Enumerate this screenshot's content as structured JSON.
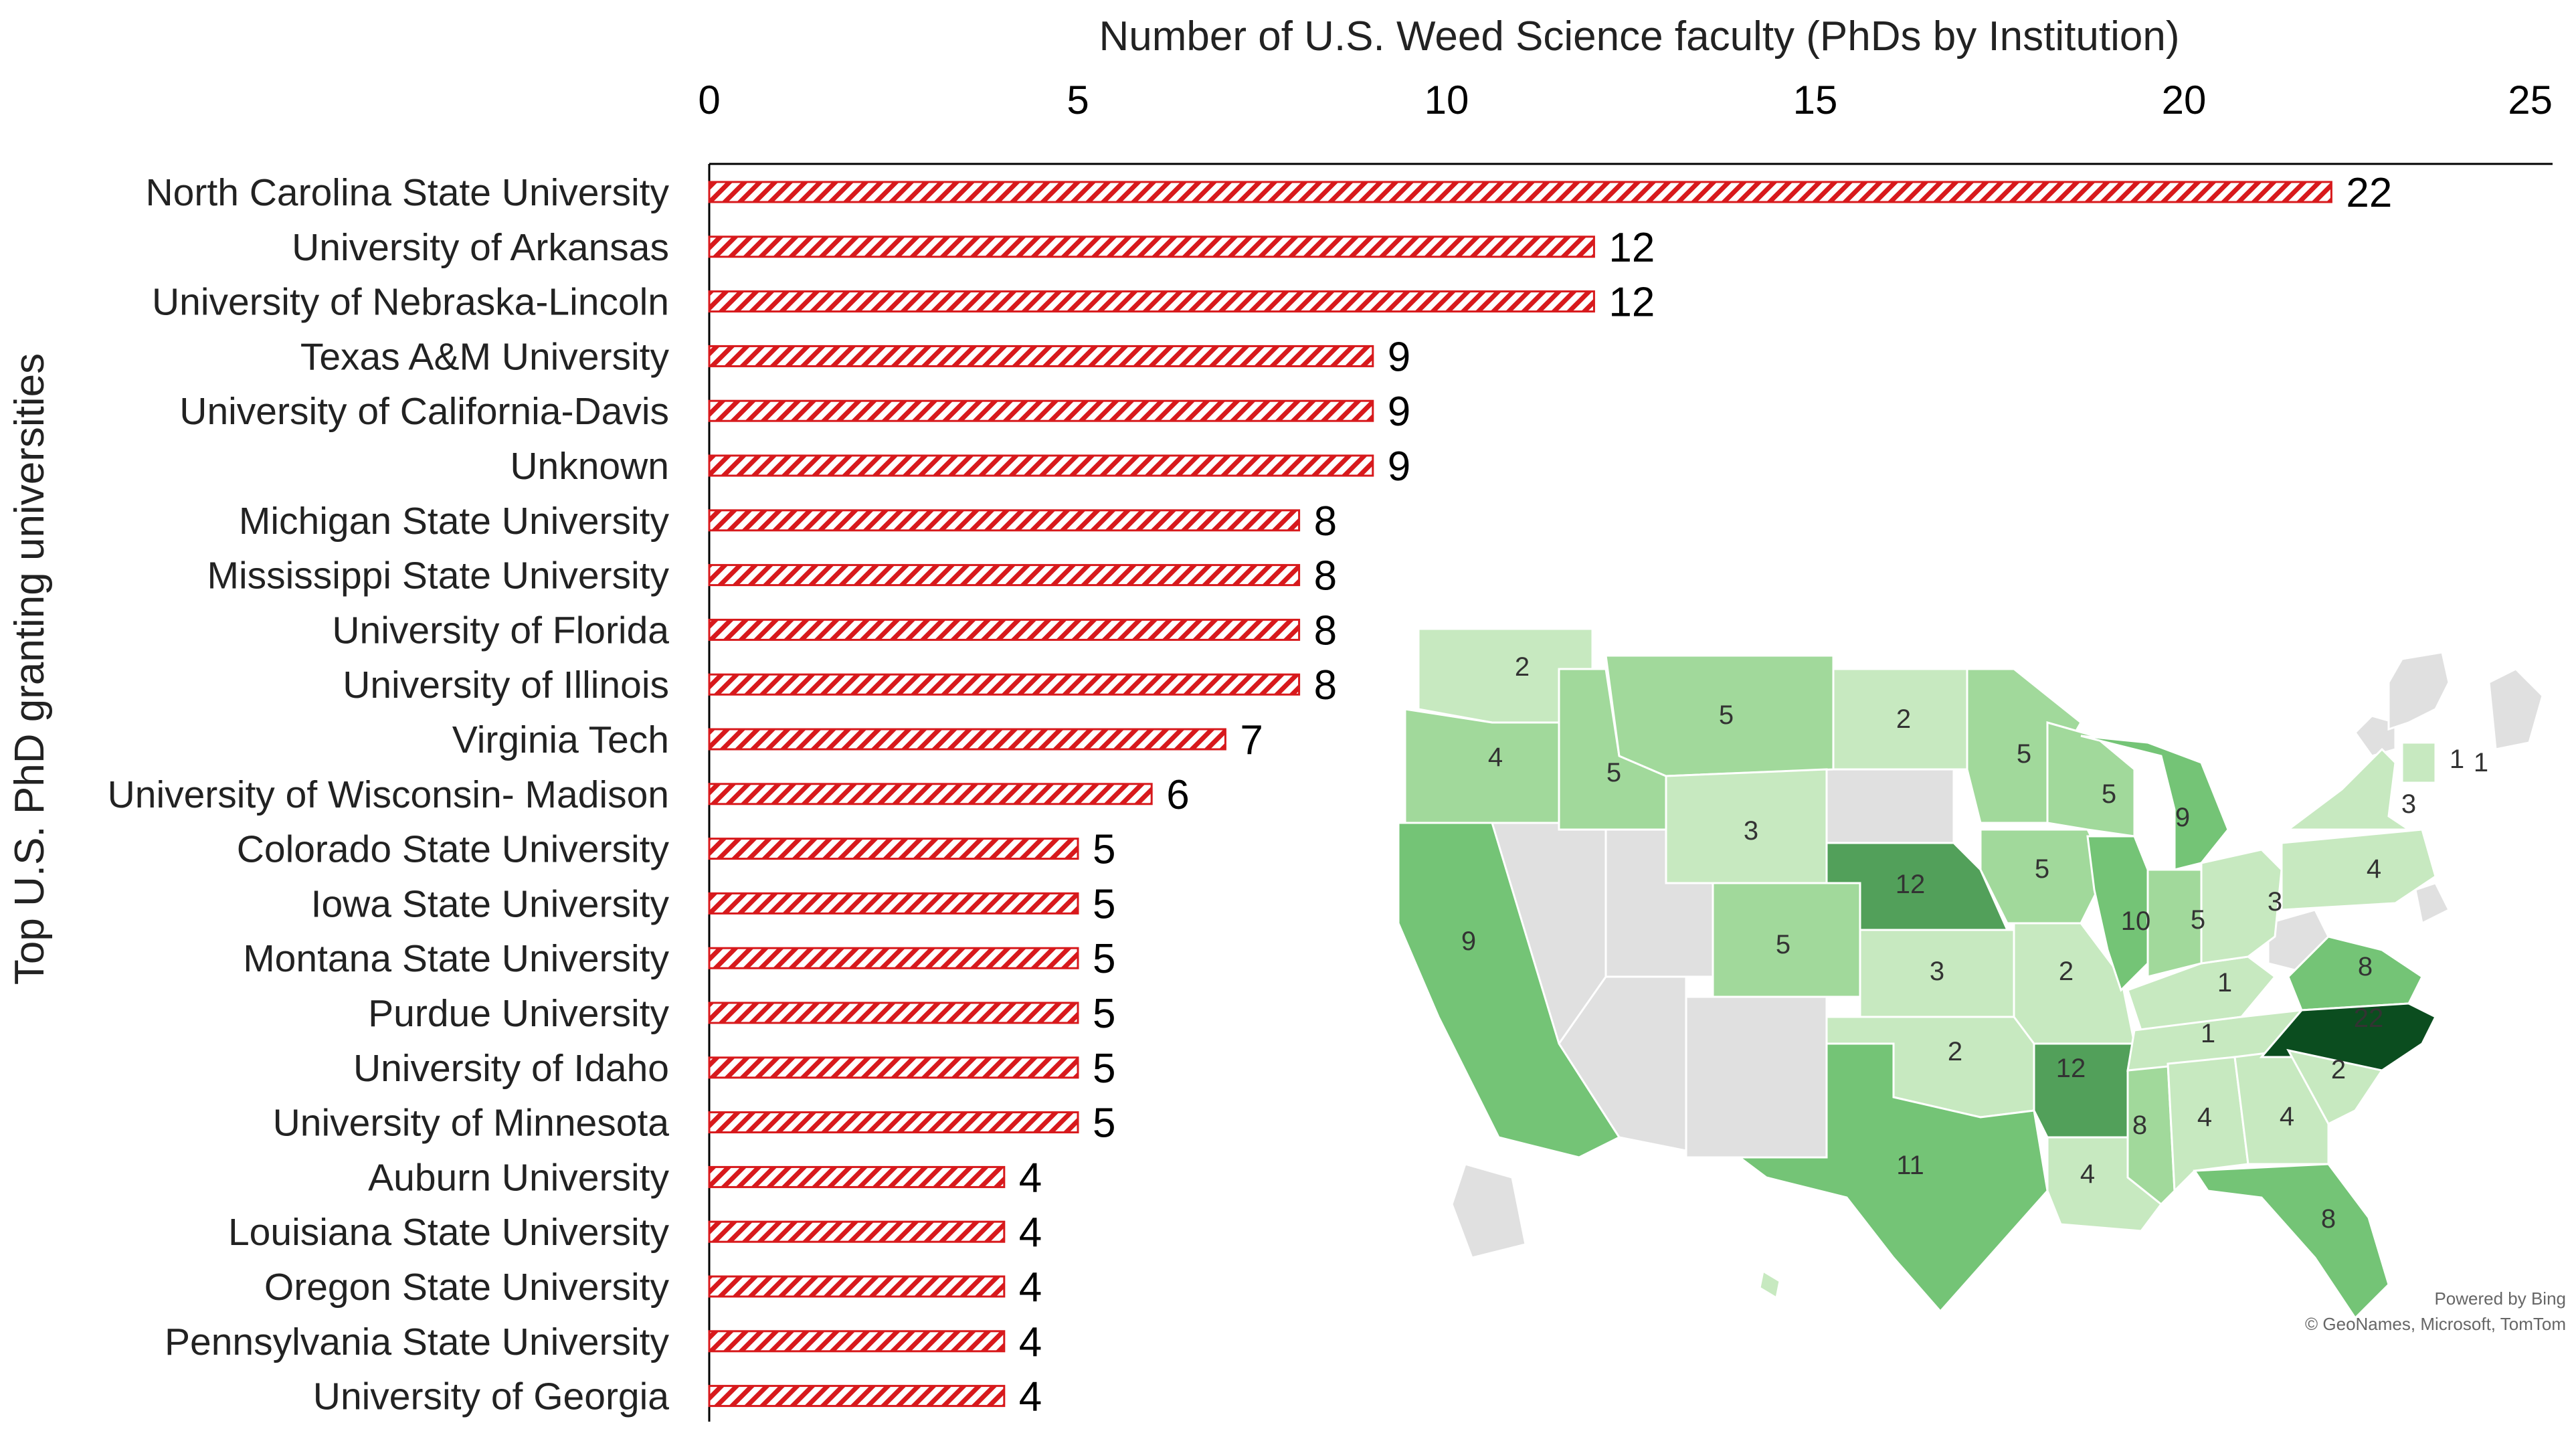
{
  "chart_data": {
    "type": "bar",
    "orientation": "horizontal",
    "title": "Number of U.S. Weed Science faculty (PhDs by Institution)",
    "xlabel": "Number of U.S. Weed Science faculty (PhDs by Institution)",
    "ylabel": "Top U.S. PhD granting universities",
    "xlim": [
      0,
      25
    ],
    "xticks": [
      "0",
      "5",
      "10",
      "15",
      "20",
      "25"
    ],
    "categories": [
      "North Carolina State University",
      "University of Arkansas",
      "University of Nebraska-Lincoln",
      "Texas A&M University",
      "University of California-Davis",
      "Unknown",
      "Michigan State University",
      "Mississippi State University",
      "University of Florida",
      "University of Illinois",
      "Virginia Tech",
      "University of Wisconsin- Madison",
      "Colorado State University",
      "Iowa State University",
      "Montana State University",
      "Purdue University",
      "University of Idaho",
      "University of Minnesota",
      "Auburn University",
      "Louisiana State University",
      "Oregon State University",
      "Pennsylvania State University",
      "University of Georgia"
    ],
    "values": [
      22,
      12,
      12,
      9,
      9,
      9,
      8,
      8,
      8,
      8,
      7,
      6,
      5,
      5,
      5,
      5,
      5,
      5,
      4,
      4,
      4,
      4,
      4
    ],
    "bar_style": "diagonal-hatch",
    "bar_color": "#d7191c",
    "grid": false,
    "inset_map": {
      "type": "choropleth",
      "region": "Contiguous United States",
      "colors": {
        "none": "#e0e0e0",
        "low": "#c7e9c0",
        "mid": "#a1d99b",
        "high": "#74c476",
        "higher": "#52a05a",
        "max": "#0b4d1f"
      },
      "state_values": [
        {
          "state": "WA",
          "value": 2
        },
        {
          "state": "OR",
          "value": 4
        },
        {
          "state": "CA",
          "value": 9
        },
        {
          "state": "ID",
          "value": 5
        },
        {
          "state": "MT",
          "value": 5
        },
        {
          "state": "WY",
          "value": 3
        },
        {
          "state": "CO",
          "value": 5
        },
        {
          "state": "ND",
          "value": 2
        },
        {
          "state": "NE",
          "value": 12
        },
        {
          "state": "KS",
          "value": 3
        },
        {
          "state": "OK",
          "value": 2
        },
        {
          "state": "TX",
          "value": 11
        },
        {
          "state": "MN",
          "value": 5
        },
        {
          "state": "IA",
          "value": 5
        },
        {
          "state": "MO",
          "value": 2
        },
        {
          "state": "AR",
          "value": 12
        },
        {
          "state": "LA",
          "value": 4
        },
        {
          "state": "WI",
          "value": 5
        },
        {
          "state": "IL",
          "value": 10
        },
        {
          "state": "MS",
          "value": 8
        },
        {
          "state": "MI",
          "value": 9
        },
        {
          "state": "IN",
          "value": 5
        },
        {
          "state": "KY",
          "value": 1
        },
        {
          "state": "TN",
          "value": 1
        },
        {
          "state": "AL",
          "value": 4
        },
        {
          "state": "OH",
          "value": 3
        },
        {
          "state": "GA",
          "value": 4
        },
        {
          "state": "FL",
          "value": 8
        },
        {
          "state": "PA",
          "value": 4
        },
        {
          "state": "NY",
          "value": 3
        },
        {
          "state": "VA",
          "value": 8
        },
        {
          "state": "NC",
          "value": 22
        },
        {
          "state": "SC",
          "value": 2
        },
        {
          "state": "VT",
          "value": 1
        },
        {
          "state": "NH",
          "value": 1
        }
      ],
      "credit_line1": "Powered by Bing",
      "credit_line2": "© GeoNames, Microsoft, TomTom"
    }
  }
}
